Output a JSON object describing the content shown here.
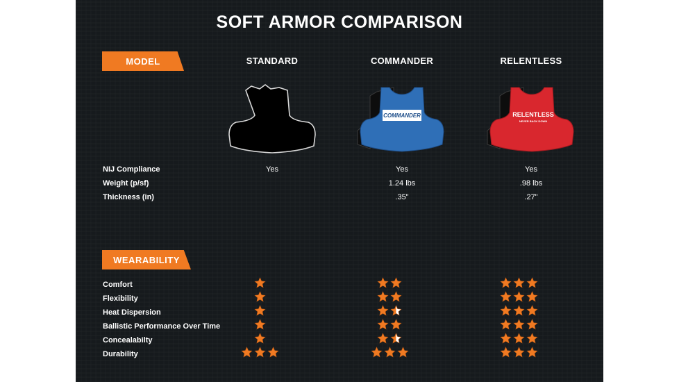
{
  "title": "SOFT ARMOR COMPARISON",
  "sections": {
    "model": "MODEL",
    "wearability": "WEARABILITY"
  },
  "models": [
    {
      "name": "STANDARD",
      "vest_color": "#000000",
      "vest_text": "",
      "vest_subtext": ""
    },
    {
      "name": "COMMANDER",
      "vest_color": "#2f6fb7",
      "vest_text": "COMMANDER",
      "vest_subtext": ""
    },
    {
      "name": "RELENTLESS",
      "vest_color": "#d9272e",
      "vest_text": "RELENTLESS",
      "vest_subtext": "NEVER BACK DOWN"
    }
  ],
  "specs": [
    {
      "label": "NIJ Compliance",
      "values": [
        "Yes",
        "Yes",
        "Yes"
      ]
    },
    {
      "label": "Weight (p/sf)",
      "values": [
        "",
        "1.24 lbs",
        ".98 lbs"
      ]
    },
    {
      "label": "Thickness (in)",
      "values": [
        "",
        ".35\"",
        ".27\""
      ]
    }
  ],
  "ratings": [
    {
      "label": "Comfort",
      "stars": [
        1,
        2,
        3
      ]
    },
    {
      "label": "Flexibility",
      "stars": [
        1,
        2,
        3
      ]
    },
    {
      "label": "Heat Dispersion",
      "stars": [
        1,
        1.5,
        3
      ]
    },
    {
      "label": "Ballistic Performance Over Time",
      "stars": [
        1,
        2,
        3
      ]
    },
    {
      "label": "Concealabilty",
      "stars": [
        1,
        1.5,
        3
      ]
    },
    {
      "label": "Durability",
      "stars": [
        3,
        3,
        3
      ]
    }
  ],
  "colors": {
    "accent": "#f07a22",
    "background": "#161a1d",
    "star": "#f07a22",
    "star_half": "#ffffff"
  },
  "icon": "star-icon"
}
